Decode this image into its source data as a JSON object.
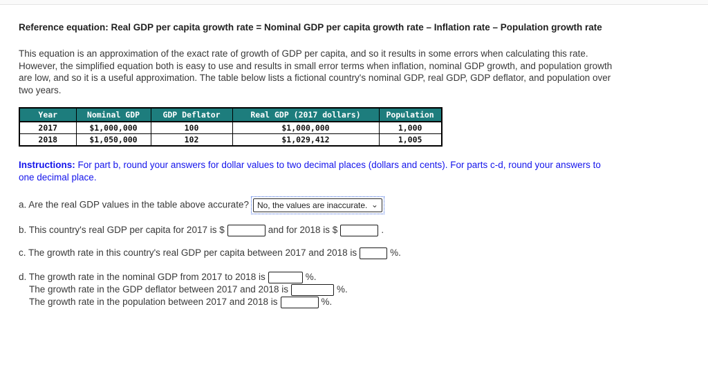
{
  "heading": "Reference equation: Real GDP per capita growth rate = Nominal GDP per capita growth rate – Inflation rate – Population growth rate",
  "paragraph": "This equation is an approximation of the exact rate of growth of GDP per capita, and so it results in some errors when calculating this rate. However, the simplified equation both is easy to use and results in small error terms when inflation, nominal GDP growth, and population growth are low, and so it is a useful approximation. The table below lists a fictional country's nominal GDP, real GDP, GDP deflator, and population over two years.",
  "table": {
    "headers": [
      "Year",
      "Nominal GDP",
      "GDP Deflator",
      "Real GDP (2017 dollars)",
      "Population"
    ],
    "rows": [
      [
        "2017",
        "$1,000,000",
        "100",
        "$1,000,000",
        "1,000"
      ],
      [
        "2018",
        "$1,050,000",
        "102",
        "$1,029,412",
        "1,005"
      ]
    ]
  },
  "instructions": {
    "label": "Instructions:",
    "text": " For part b, round your answers for dollar values to two decimal places (dollars and cents). For parts c-d, round your answers to one decimal place."
  },
  "questions": {
    "a": {
      "text": "a. Are the real GDP values in the table above accurate?",
      "selected_option": "No, the values are inaccurate."
    },
    "b": {
      "before_2017": "b. This country's real GDP per capita for 2017 is $",
      "between": "and for 2018 is $",
      "after": "."
    },
    "c": {
      "before": "c. The growth rate in this country's real GDP per capita between 2017 and 2018 is",
      "after": "%."
    },
    "d": {
      "line1": {
        "before": "d. The growth rate in the nominal GDP from 2017 to 2018 is",
        "after": "%."
      },
      "line2": {
        "before": "The growth rate in the GDP deflator between 2017 and 2018 is",
        "after": "%."
      },
      "line3": {
        "before": "The growth rate in the population between 2017 and 2018 is",
        "after": "%."
      }
    }
  },
  "icons": {
    "chevron_down": "⌄"
  },
  "colors": {
    "table_header_bg": "#1d7d7d",
    "table_header_text": "#ffffff",
    "instructions_text": "#1414eb",
    "focus_ring": "#3a66e0",
    "body_text": "#383838"
  }
}
